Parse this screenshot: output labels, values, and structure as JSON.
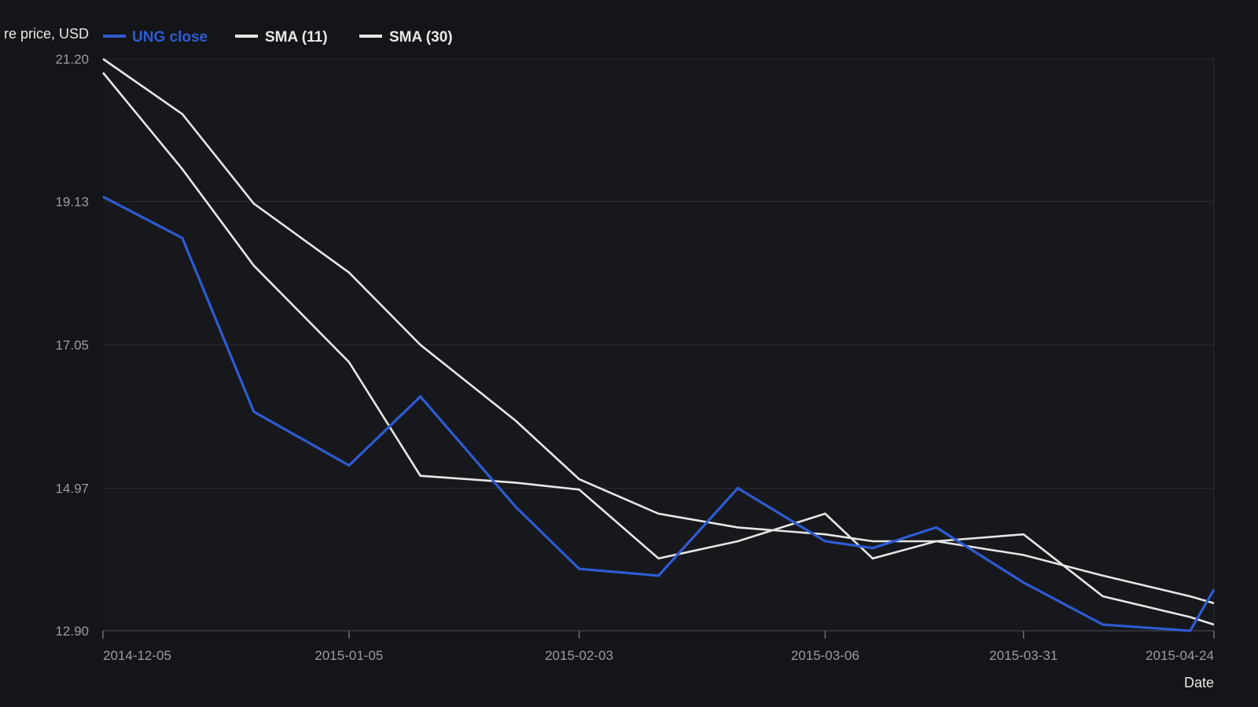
{
  "chart_data": {
    "type": "line",
    "ylabel": "re price, USD",
    "xlabel": "Date",
    "ylim": [
      12.9,
      21.2
    ],
    "yticks": [
      "12.90",
      "14.97",
      "17.05",
      "19.13",
      "21.20"
    ],
    "xtick_labels": [
      "2014-12-05",
      "2015-01-05",
      "2015-02-03",
      "2015-03-06",
      "2015-03-31",
      "2015-04-24"
    ],
    "x": [
      "2014-12-05",
      "2014-12-15",
      "2014-12-24",
      "2015-01-05",
      "2015-01-14",
      "2015-01-26",
      "2015-02-03",
      "2015-02-13",
      "2015-02-23",
      "2015-03-06",
      "2015-03-12",
      "2015-03-20",
      "2015-03-31",
      "2015-04-10",
      "2015-04-21",
      "2015-04-24"
    ],
    "grid": true,
    "legend_position": "top-left",
    "series": [
      {
        "name": "UNG close",
        "color": "#2f5bd3",
        "values": [
          19.2,
          18.6,
          16.08,
          15.3,
          16.3,
          14.7,
          13.8,
          13.7,
          14.97,
          14.2,
          14.1,
          14.4,
          13.6,
          12.99,
          12.9,
          13.5
        ]
      },
      {
        "name": "SMA (11)",
        "color": "#e6e6e6",
        "values": [
          21.0,
          19.6,
          18.2,
          16.8,
          15.15,
          15.05,
          14.95,
          13.95,
          14.2,
          14.6,
          13.95,
          14.2,
          14.3,
          13.4,
          13.1,
          12.99
        ]
      },
      {
        "name": "SMA (30)",
        "color": "#e6e6e6",
        "values": [
          21.2,
          20.4,
          19.1,
          18.1,
          17.05,
          15.95,
          15.1,
          14.6,
          14.4,
          14.3,
          14.2,
          14.2,
          14.0,
          13.7,
          13.4,
          13.3
        ]
      }
    ]
  }
}
